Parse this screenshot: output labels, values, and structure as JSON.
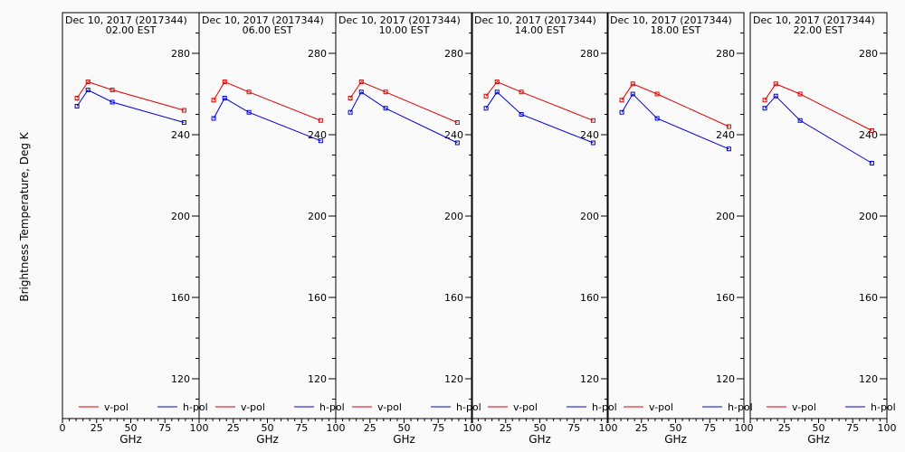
{
  "figure": {
    "ylabel": "Brightness Temperature, Deg K",
    "xlabel": "GHz",
    "background": "#fafafa",
    "series_colors": {
      "v-pol": "#e00000",
      "h-pol": "#0000e0"
    }
  },
  "chart_data": [
    {
      "type": "line",
      "title": "Dec 10, 2017 (2017344)",
      "subtitle": "02.00 EST",
      "xlabel": "GHz",
      "ylabel": "Brightness Temperature, Deg K",
      "xlim": [
        0,
        100
      ],
      "ylim": [
        100,
        295
      ],
      "xticks": [
        "0",
        "25",
        "50",
        "75",
        "100"
      ],
      "yticks": [
        "120",
        "160",
        "200",
        "240",
        "280"
      ],
      "x": [
        10.65,
        18.7,
        36.5,
        89.0
      ],
      "series": [
        {
          "name": "v-pol",
          "color": "#e00000",
          "values": [
            258,
            266,
            262,
            252
          ]
        },
        {
          "name": "h-pol",
          "color": "#0000e0",
          "values": [
            254,
            262,
            256,
            246
          ]
        }
      ],
      "legend": "bottom"
    },
    {
      "type": "line",
      "title": "Dec 10, 2017 (2017344)",
      "subtitle": "06.00 EST",
      "xlabel": "GHz",
      "ylabel": "",
      "xlim": [
        0,
        100
      ],
      "ylim": [
        100,
        295
      ],
      "xticks": [
        "0",
        "25",
        "50",
        "75",
        "100"
      ],
      "yticks": [
        "120",
        "160",
        "200",
        "240",
        "280"
      ],
      "x": [
        10.65,
        18.7,
        36.5,
        89.0
      ],
      "series": [
        {
          "name": "v-pol",
          "color": "#e00000",
          "values": [
            257,
            266,
            261,
            247
          ]
        },
        {
          "name": "h-pol",
          "color": "#0000e0",
          "values": [
            248,
            258,
            251,
            237
          ]
        }
      ],
      "legend": "bottom"
    },
    {
      "type": "line",
      "title": "Dec 10, 2017 (2017344)",
      "subtitle": "10.00 EST",
      "xlabel": "GHz",
      "ylabel": "",
      "xlim": [
        0,
        100
      ],
      "ylim": [
        100,
        295
      ],
      "xticks": [
        "0",
        "25",
        "50",
        "75",
        "100"
      ],
      "yticks": [
        "120",
        "160",
        "200",
        "240",
        "280"
      ],
      "x": [
        10.65,
        18.7,
        36.5,
        89.0
      ],
      "series": [
        {
          "name": "v-pol",
          "color": "#e00000",
          "values": [
            258,
            266,
            261,
            246
          ]
        },
        {
          "name": "h-pol",
          "color": "#0000e0",
          "values": [
            251,
            261,
            253,
            236
          ]
        }
      ],
      "legend": "bottom"
    },
    {
      "type": "line",
      "title": "Dec 10, 2017 (2017344)",
      "subtitle": "14.00 EST",
      "xlabel": "GHz",
      "ylabel": "",
      "xlim": [
        0,
        100
      ],
      "ylim": [
        100,
        295
      ],
      "xticks": [
        "0",
        "25",
        "50",
        "75",
        "100"
      ],
      "yticks": [
        "120",
        "160",
        "200",
        "240",
        "280"
      ],
      "x": [
        10.65,
        18.7,
        36.5,
        89.0
      ],
      "series": [
        {
          "name": "v-pol",
          "color": "#e00000",
          "values": [
            259,
            266,
            261,
            247
          ]
        },
        {
          "name": "h-pol",
          "color": "#0000e0",
          "values": [
            253,
            261,
            250,
            236
          ]
        }
      ],
      "legend": "bottom"
    },
    {
      "type": "line",
      "title": "Dec 10, 2017 (2017344)",
      "subtitle": "18.00 EST",
      "xlabel": "GHz",
      "ylabel": "",
      "xlim": [
        0,
        100
      ],
      "ylim": [
        100,
        295
      ],
      "xticks": [
        "0",
        "25",
        "50",
        "75",
        "100"
      ],
      "yticks": [
        "120",
        "160",
        "200",
        "240",
        "280"
      ],
      "x": [
        10.65,
        18.7,
        36.5,
        89.0
      ],
      "series": [
        {
          "name": "v-pol",
          "color": "#e00000",
          "values": [
            257,
            265,
            260,
            244
          ]
        },
        {
          "name": "h-pol",
          "color": "#0000e0",
          "values": [
            251,
            260,
            248,
            233
          ]
        }
      ],
      "legend": "bottom"
    },
    {
      "type": "line",
      "title": "Dec 10, 2017 (2017344)",
      "subtitle": "22.00 EST",
      "xlabel": "GHz",
      "ylabel": "",
      "xlim": [
        0,
        100
      ],
      "ylim": [
        100,
        295
      ],
      "xticks": [
        "0",
        "25",
        "50",
        "75",
        "100"
      ],
      "yticks": [
        "120",
        "160",
        "200",
        "240",
        "280"
      ],
      "x": [
        10.65,
        18.7,
        36.5,
        89.0
      ],
      "series": [
        {
          "name": "v-pol",
          "color": "#e00000",
          "values": [
            257,
            265,
            260,
            242
          ]
        },
        {
          "name": "h-pol",
          "color": "#0000e0",
          "values": [
            253,
            259,
            247,
            226
          ]
        }
      ],
      "legend": "bottom"
    }
  ]
}
